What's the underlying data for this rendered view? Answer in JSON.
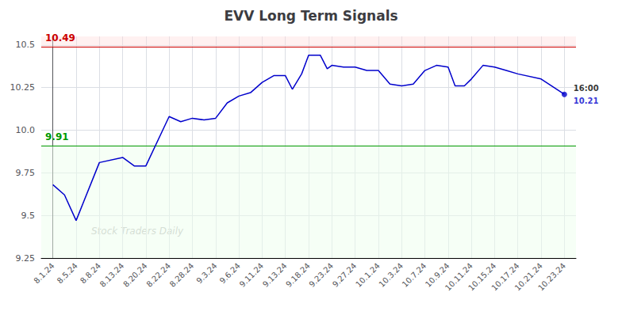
{
  "chart_data": {
    "type": "line",
    "title": "EVV Long Term Signals",
    "watermark": "Stock Traders Daily",
    "x": [
      0,
      0.5,
      1,
      2,
      3,
      3.5,
      4,
      5,
      5.5,
      6,
      6.5,
      7,
      7.5,
      8,
      8.5,
      9,
      9.5,
      10,
      10.3,
      10.7,
      11,
      11.5,
      11.8,
      12,
      12.5,
      13,
      13.5,
      14,
      14.5,
      15,
      15.5,
      16,
      16.5,
      17,
      17.3,
      17.7,
      18,
      18.5,
      19,
      19.5,
      20,
      21,
      22
    ],
    "values": [
      9.68,
      9.62,
      9.47,
      9.81,
      9.84,
      9.79,
      9.79,
      10.08,
      10.05,
      10.07,
      10.06,
      10.07,
      10.16,
      10.2,
      10.22,
      10.28,
      10.32,
      10.32,
      10.24,
      10.33,
      10.44,
      10.44,
      10.36,
      10.38,
      10.37,
      10.37,
      10.35,
      10.35,
      10.27,
      10.26,
      10.27,
      10.35,
      10.38,
      10.37,
      10.26,
      10.26,
      10.3,
      10.38,
      10.37,
      10.35,
      10.33,
      10.3,
      10.21
    ],
    "color": "#0000cc",
    "xlim": [
      -0.5,
      22.5
    ],
    "xticks": [
      {
        "value": 0,
        "label": "8.1.24"
      },
      {
        "value": 1,
        "label": "8.5.24"
      },
      {
        "value": 2,
        "label": "8.8.24"
      },
      {
        "value": 3,
        "label": "8.13.24"
      },
      {
        "value": 4,
        "label": "8.20.24"
      },
      {
        "value": 5,
        "label": "8.22.24"
      },
      {
        "value": 6,
        "label": "8.28.24"
      },
      {
        "value": 7,
        "label": "9.3.24"
      },
      {
        "value": 8,
        "label": "9.6.24"
      },
      {
        "value": 9,
        "label": "9.11.24"
      },
      {
        "value": 10,
        "label": "9.13.24"
      },
      {
        "value": 11,
        "label": "9.18.24"
      },
      {
        "value": 12,
        "label": "9.23.24"
      },
      {
        "value": 13,
        "label": "9.27.24"
      },
      {
        "value": 14,
        "label": "10.1.24"
      },
      {
        "value": 15,
        "label": "10.3.24"
      },
      {
        "value": 16,
        "label": "10.7.24"
      },
      {
        "value": 17,
        "label": "10.9.24"
      },
      {
        "value": 18,
        "label": "10.11.24"
      },
      {
        "value": 19,
        "label": "10.15.24"
      },
      {
        "value": 20,
        "label": "10.17.24"
      },
      {
        "value": 21,
        "label": "10.21.24"
      },
      {
        "value": 22,
        "label": "10.23.24"
      }
    ],
    "ylim": [
      9.25,
      10.55
    ],
    "yticks": [
      9.25,
      9.5,
      9.75,
      {
        "value": 10,
        "label": "10.0"
      },
      10.25,
      10.5
    ],
    "grid": true,
    "resistance": {
      "value": 10.49,
      "color": "#cc0000",
      "fill": "#ffdddd"
    },
    "support": {
      "value": 9.91,
      "color": "#009900",
      "fill": "#eeffee"
    },
    "last_price": 10.21,
    "last_time": "16:00"
  }
}
